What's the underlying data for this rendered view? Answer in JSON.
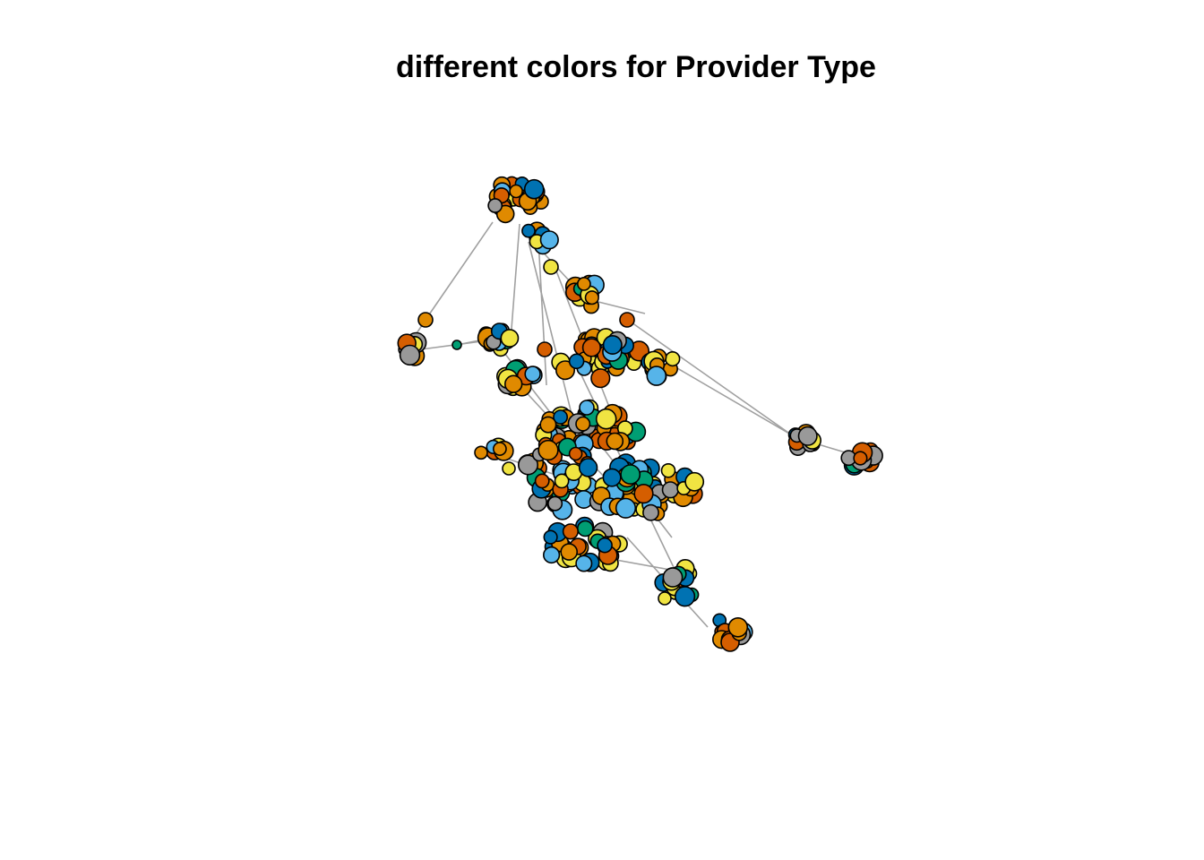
{
  "plot": {
    "title": "different colors for Provider Type"
  },
  "palette": {
    "orange": "#E08A00",
    "vermillion": "#D55E00",
    "yellow": "#F0E442",
    "sky_blue": "#56B4E9",
    "green": "#009E73",
    "blue": "#0072B2",
    "gray": "#999999",
    "pink": "#CC79A7"
  }
}
